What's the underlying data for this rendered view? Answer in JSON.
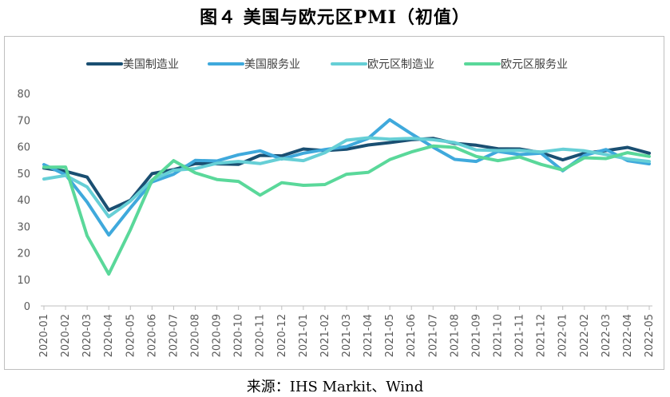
{
  "title": "图４ 美国与欧元区PMI（初值）",
  "source": "来源：IHS Markit、Wind",
  "chart_data": {
    "type": "line",
    "x": [
      "2020-01",
      "2020-02",
      "2020-03",
      "2020-04",
      "2020-05",
      "2020-06",
      "2020-07",
      "2020-08",
      "2020-09",
      "2020-10",
      "2020-11",
      "2020-12",
      "2021-01",
      "2021-02",
      "2021-03",
      "2021-04",
      "2021-05",
      "2021-06",
      "2021-07",
      "2021-08",
      "2021-09",
      "2021-10",
      "2021-11",
      "2021-12",
      "2022-01",
      "2022-02",
      "2022-03",
      "2022-04",
      "2022-05"
    ],
    "ylim": [
      0,
      80
    ],
    "yticks": [
      0,
      10,
      20,
      30,
      40,
      50,
      60,
      70,
      80
    ],
    "legend_position": "top",
    "grid": false,
    "series": [
      {
        "name": "美国制造业",
        "color": "#1a4f72",
        "values": [
          51.9,
          50.7,
          48.5,
          36.1,
          39.8,
          49.8,
          51.3,
          53.6,
          53.5,
          53.3,
          56.7,
          56.5,
          59.1,
          58.5,
          59.0,
          60.6,
          61.5,
          62.6,
          63.1,
          61.2,
          60.5,
          59.2,
          59.1,
          57.7,
          55.0,
          57.5,
          58.5,
          59.7,
          57.5
        ]
      },
      {
        "name": "美国服务业",
        "color": "#3fa9dc",
        "values": [
          53.2,
          49.4,
          39.1,
          26.7,
          36.9,
          46.7,
          49.6,
          54.8,
          54.6,
          56.9,
          58.4,
          55.3,
          57.5,
          58.9,
          60.0,
          63.1,
          70.1,
          64.8,
          59.8,
          55.2,
          54.4,
          58.2,
          57.0,
          57.5,
          50.9,
          56.7,
          58.9,
          54.7,
          53.5
        ]
      },
      {
        "name": "欧元区制造业",
        "color": "#66cfd6",
        "values": [
          47.8,
          49.1,
          44.8,
          33.6,
          39.5,
          47.4,
          51.1,
          51.7,
          53.7,
          54.4,
          53.6,
          55.5,
          54.7,
          57.7,
          62.4,
          63.3,
          62.8,
          63.1,
          62.6,
          61.5,
          58.7,
          58.5,
          58.6,
          58.0,
          59.0,
          58.4,
          57.0,
          55.3,
          54.4
        ]
      },
      {
        "name": "欧元区服务业",
        "color": "#5ad89a",
        "values": [
          52.2,
          52.3,
          26.4,
          12.0,
          28.7,
          47.3,
          54.7,
          50.1,
          47.6,
          46.9,
          41.7,
          46.4,
          45.4,
          45.7,
          49.6,
          50.3,
          55.1,
          58.0,
          60.2,
          59.7,
          56.3,
          54.7,
          56.1,
          53.3,
          51.2,
          55.8,
          55.5,
          57.7,
          56.3
        ]
      }
    ]
  }
}
